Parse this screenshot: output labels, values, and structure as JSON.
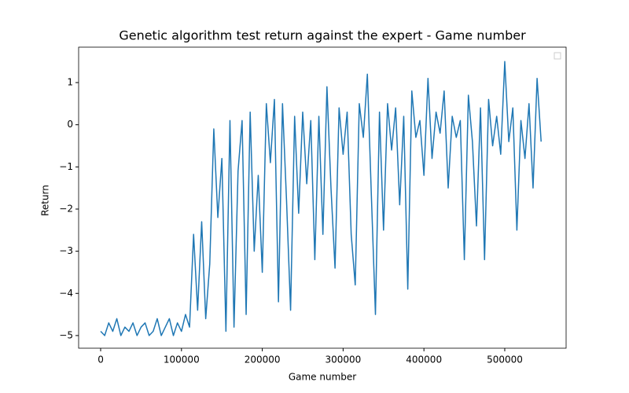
{
  "chart_data": {
    "type": "line",
    "title": "Genetic algorithm test return against the expert - Game number",
    "xlabel": "Game number",
    "ylabel": "Return",
    "x": [
      0,
      5000,
      10000,
      15000,
      20000,
      25000,
      30000,
      35000,
      40000,
      45000,
      50000,
      55000,
      60000,
      65000,
      70000,
      75000,
      80000,
      85000,
      90000,
      95000,
      100000,
      105000,
      110000,
      115000,
      120000,
      125000,
      130000,
      135000,
      140000,
      145000,
      150000,
      155000,
      160000,
      165000,
      170000,
      175000,
      180000,
      185000,
      190000,
      195000,
      200000,
      205000,
      210000,
      215000,
      220000,
      225000,
      230000,
      235000,
      240000,
      245000,
      250000,
      255000,
      260000,
      265000,
      270000,
      275000,
      280000,
      285000,
      290000,
      295000,
      300000,
      305000,
      310000,
      315000,
      320000,
      325000,
      330000,
      335000,
      340000,
      345000,
      350000,
      355000,
      360000,
      365000,
      370000,
      375000,
      380000,
      385000,
      390000,
      395000,
      400000,
      405000,
      410000,
      415000,
      420000,
      425000,
      430000,
      435000,
      440000,
      445000,
      450000,
      455000,
      460000,
      465000,
      470000,
      475000,
      480000,
      485000,
      490000,
      495000,
      500000,
      505000,
      510000,
      515000,
      520000,
      525000,
      530000,
      535000,
      540000,
      545000
    ],
    "series": [
      {
        "color": "#1f77b4",
        "values": [
          -4.9,
          -5,
          -4.7,
          -4.9,
          -4.6,
          -5,
          -4.8,
          -4.9,
          -4.7,
          -5,
          -4.8,
          -4.7,
          -5,
          -4.9,
          -4.6,
          -5,
          -4.8,
          -4.6,
          -5,
          -4.7,
          -4.9,
          -4.5,
          -4.8,
          -2.6,
          -4.4,
          -2.3,
          -4.6,
          -3.3,
          -0.1,
          -2.2,
          -0.8,
          -4.9,
          0.1,
          -4.8,
          -1.1,
          0.1,
          -4.5,
          0.3,
          -3,
          -1.2,
          -3.5,
          0.5,
          -0.9,
          0.6,
          -4.2,
          0.5,
          -1.8,
          -4.4,
          0.2,
          -2.1,
          0.3,
          -1.4,
          0.1,
          -3.2,
          0.2,
          -2.6,
          0.9,
          -1.5,
          -3.4,
          0.4,
          -0.7,
          0.3,
          -2.6,
          -3.8,
          0.5,
          -0.3,
          1.2,
          -1.7,
          -4.5,
          0.3,
          -2.5,
          0.5,
          -0.6,
          0.4,
          -1.9,
          0.2,
          -3.9,
          0.8,
          -0.3,
          0.1,
          -1.2,
          1.1,
          -0.8,
          0.3,
          -0.2,
          0.8,
          -1.5,
          0.2,
          -0.3,
          0.1,
          -3.2,
          0.7,
          -0.4,
          -2.4,
          0.4,
          -3.2,
          0.6,
          -0.5,
          0.2,
          -0.7,
          1.5,
          -0.4,
          0.4,
          -2.5,
          0.1,
          -0.8,
          0.5,
          -1.5,
          1.1,
          -0.4
        ]
      }
    ],
    "xlim": [
      -27250,
      575900
    ],
    "ylim": [
      -5.3,
      1.84
    ],
    "xticks": [
      0,
      100000,
      200000,
      300000,
      400000,
      500000
    ],
    "yticks": [
      {
        "value": -5,
        "label": "−5"
      },
      {
        "value": -4,
        "label": "−4"
      },
      {
        "value": -3,
        "label": "−3"
      },
      {
        "value": -2,
        "label": "−2"
      },
      {
        "value": -1,
        "label": "−1"
      },
      0,
      1
    ],
    "legend": "upper right"
  }
}
